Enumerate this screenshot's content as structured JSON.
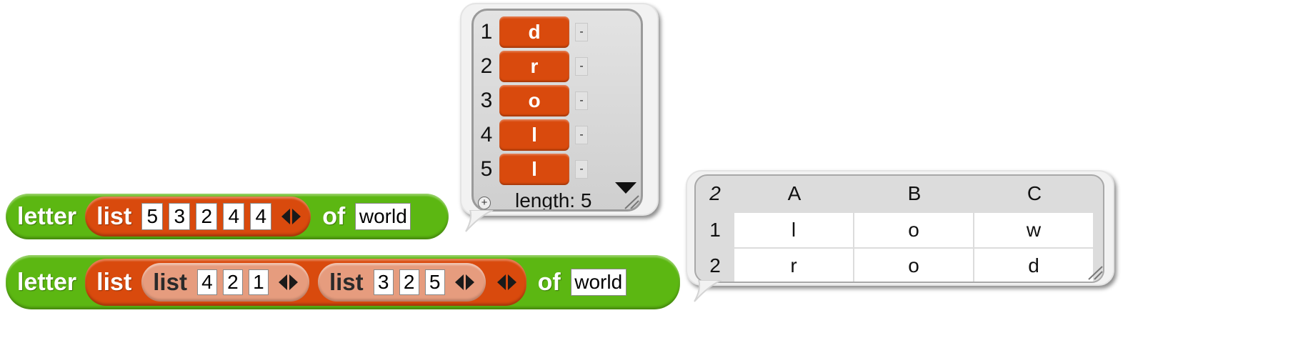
{
  "block1": {
    "letter_label": "letter",
    "list_label": "list",
    "items": [
      "5",
      "3",
      "2",
      "4",
      "4"
    ],
    "of_label": "of",
    "text_value": "world"
  },
  "block2": {
    "letter_label": "letter",
    "list_label": "list",
    "inner_lists": [
      {
        "label": "list",
        "items": [
          "4",
          "2",
          "1"
        ]
      },
      {
        "label": "list",
        "items": [
          "3",
          "2",
          "5"
        ]
      }
    ],
    "of_label": "of",
    "text_value": "world"
  },
  "result_list": {
    "rows": [
      {
        "index": "1",
        "value": "d"
      },
      {
        "index": "2",
        "value": "r"
      },
      {
        "index": "3",
        "value": "o"
      },
      {
        "index": "4",
        "value": "l"
      },
      {
        "index": "5",
        "value": "l"
      }
    ],
    "minus": "-",
    "plus": "+",
    "length_text": "length: 5"
  },
  "result_table": {
    "corner_label": "2",
    "columns": [
      "A",
      "B",
      "C"
    ],
    "rows": [
      {
        "index": "1",
        "cells": [
          "l",
          "o",
          "w"
        ]
      },
      {
        "index": "2",
        "cells": [
          "r",
          "o",
          "d"
        ]
      }
    ]
  },
  "colors": {
    "green": "#5cb712",
    "list_orange": "#d94a0d",
    "list_light": "#e69c7e"
  }
}
